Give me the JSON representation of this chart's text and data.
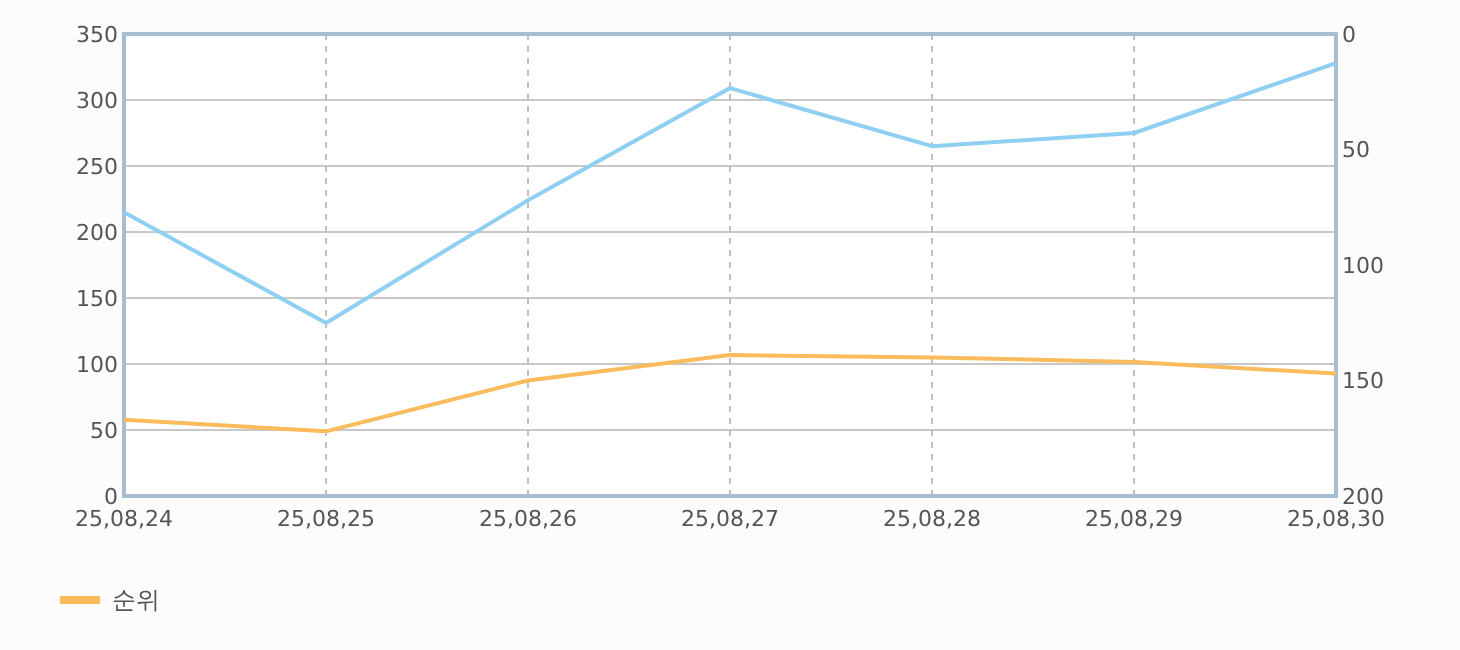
{
  "chart_data": {
    "type": "line",
    "categories": [
      "25,08,24",
      "25,08,25",
      "25,08,26",
      "25,08,27",
      "25,08,28",
      "25,08,29",
      "25,08,30"
    ],
    "series": [
      {
        "color": "#8fd0f2",
        "values": [
          215,
          131,
          224,
          309,
          265,
          275,
          328
        ]
      },
      {
        "name": "순위",
        "color": "#f9bb5c",
        "axis": "y2",
        "values": [
          167,
          172,
          150,
          139,
          140,
          142,
          147
        ]
      }
    ],
    "ylim": [
      0,
      350
    ],
    "yticks": [
      0,
      50,
      100,
      150,
      200,
      250,
      300,
      350
    ],
    "y2lim": [
      200,
      0
    ],
    "y2ticks": [
      0,
      50,
      100,
      150,
      200
    ],
    "grid": true,
    "legend": "bottom left",
    "marker": "none",
    "line_style": "solid"
  }
}
